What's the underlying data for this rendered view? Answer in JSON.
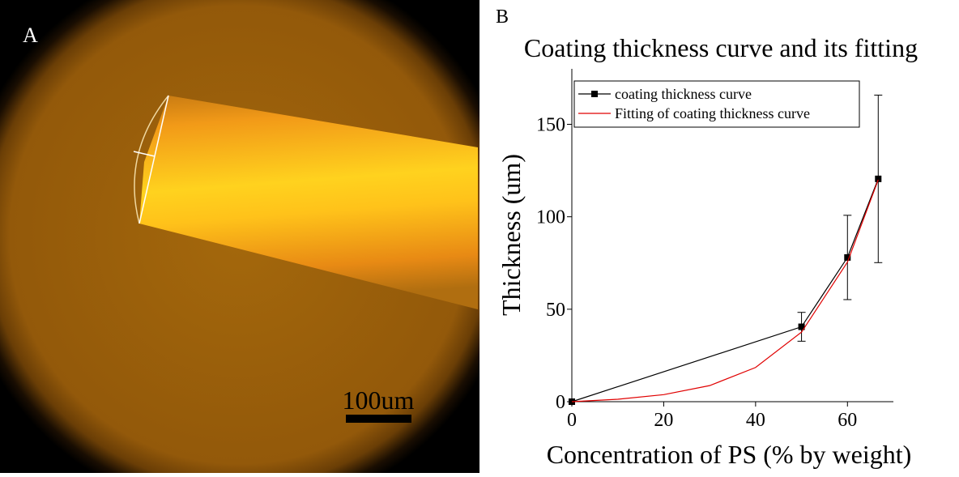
{
  "panel_a": {
    "label": "A",
    "scale_bar": "100um"
  },
  "chart_data": {
    "type": "line",
    "panel_label": "B",
    "title": "Coating thickness curve and its fitting",
    "x_label": "Concentration of PS (% by weight)",
    "y_label": "Thickness (um)",
    "xlim": [
      0,
      70
    ],
    "ylim": [
      0,
      180
    ],
    "xticks": [
      0,
      20,
      40,
      60
    ],
    "yticks": [
      0,
      50,
      100,
      150
    ],
    "legend": "top-left",
    "series": [
      {
        "name": "coating thickness curve",
        "color": "#000000",
        "marker": "square",
        "x": [
          0,
          50,
          60,
          66.7
        ],
        "values": [
          0,
          40.5,
          78,
          120.5
        ],
        "errors": [
          0,
          7.8,
          22.8,
          45.3
        ]
      },
      {
        "name": "Fitting of coating thickness curve",
        "color": "#e00000",
        "marker": "none",
        "x": [
          0,
          10,
          20,
          30,
          40,
          50,
          60,
          66.7
        ],
        "values": [
          0,
          1.3,
          3.8,
          8.7,
          18.5,
          37.6,
          75.5,
          120
        ]
      }
    ]
  }
}
